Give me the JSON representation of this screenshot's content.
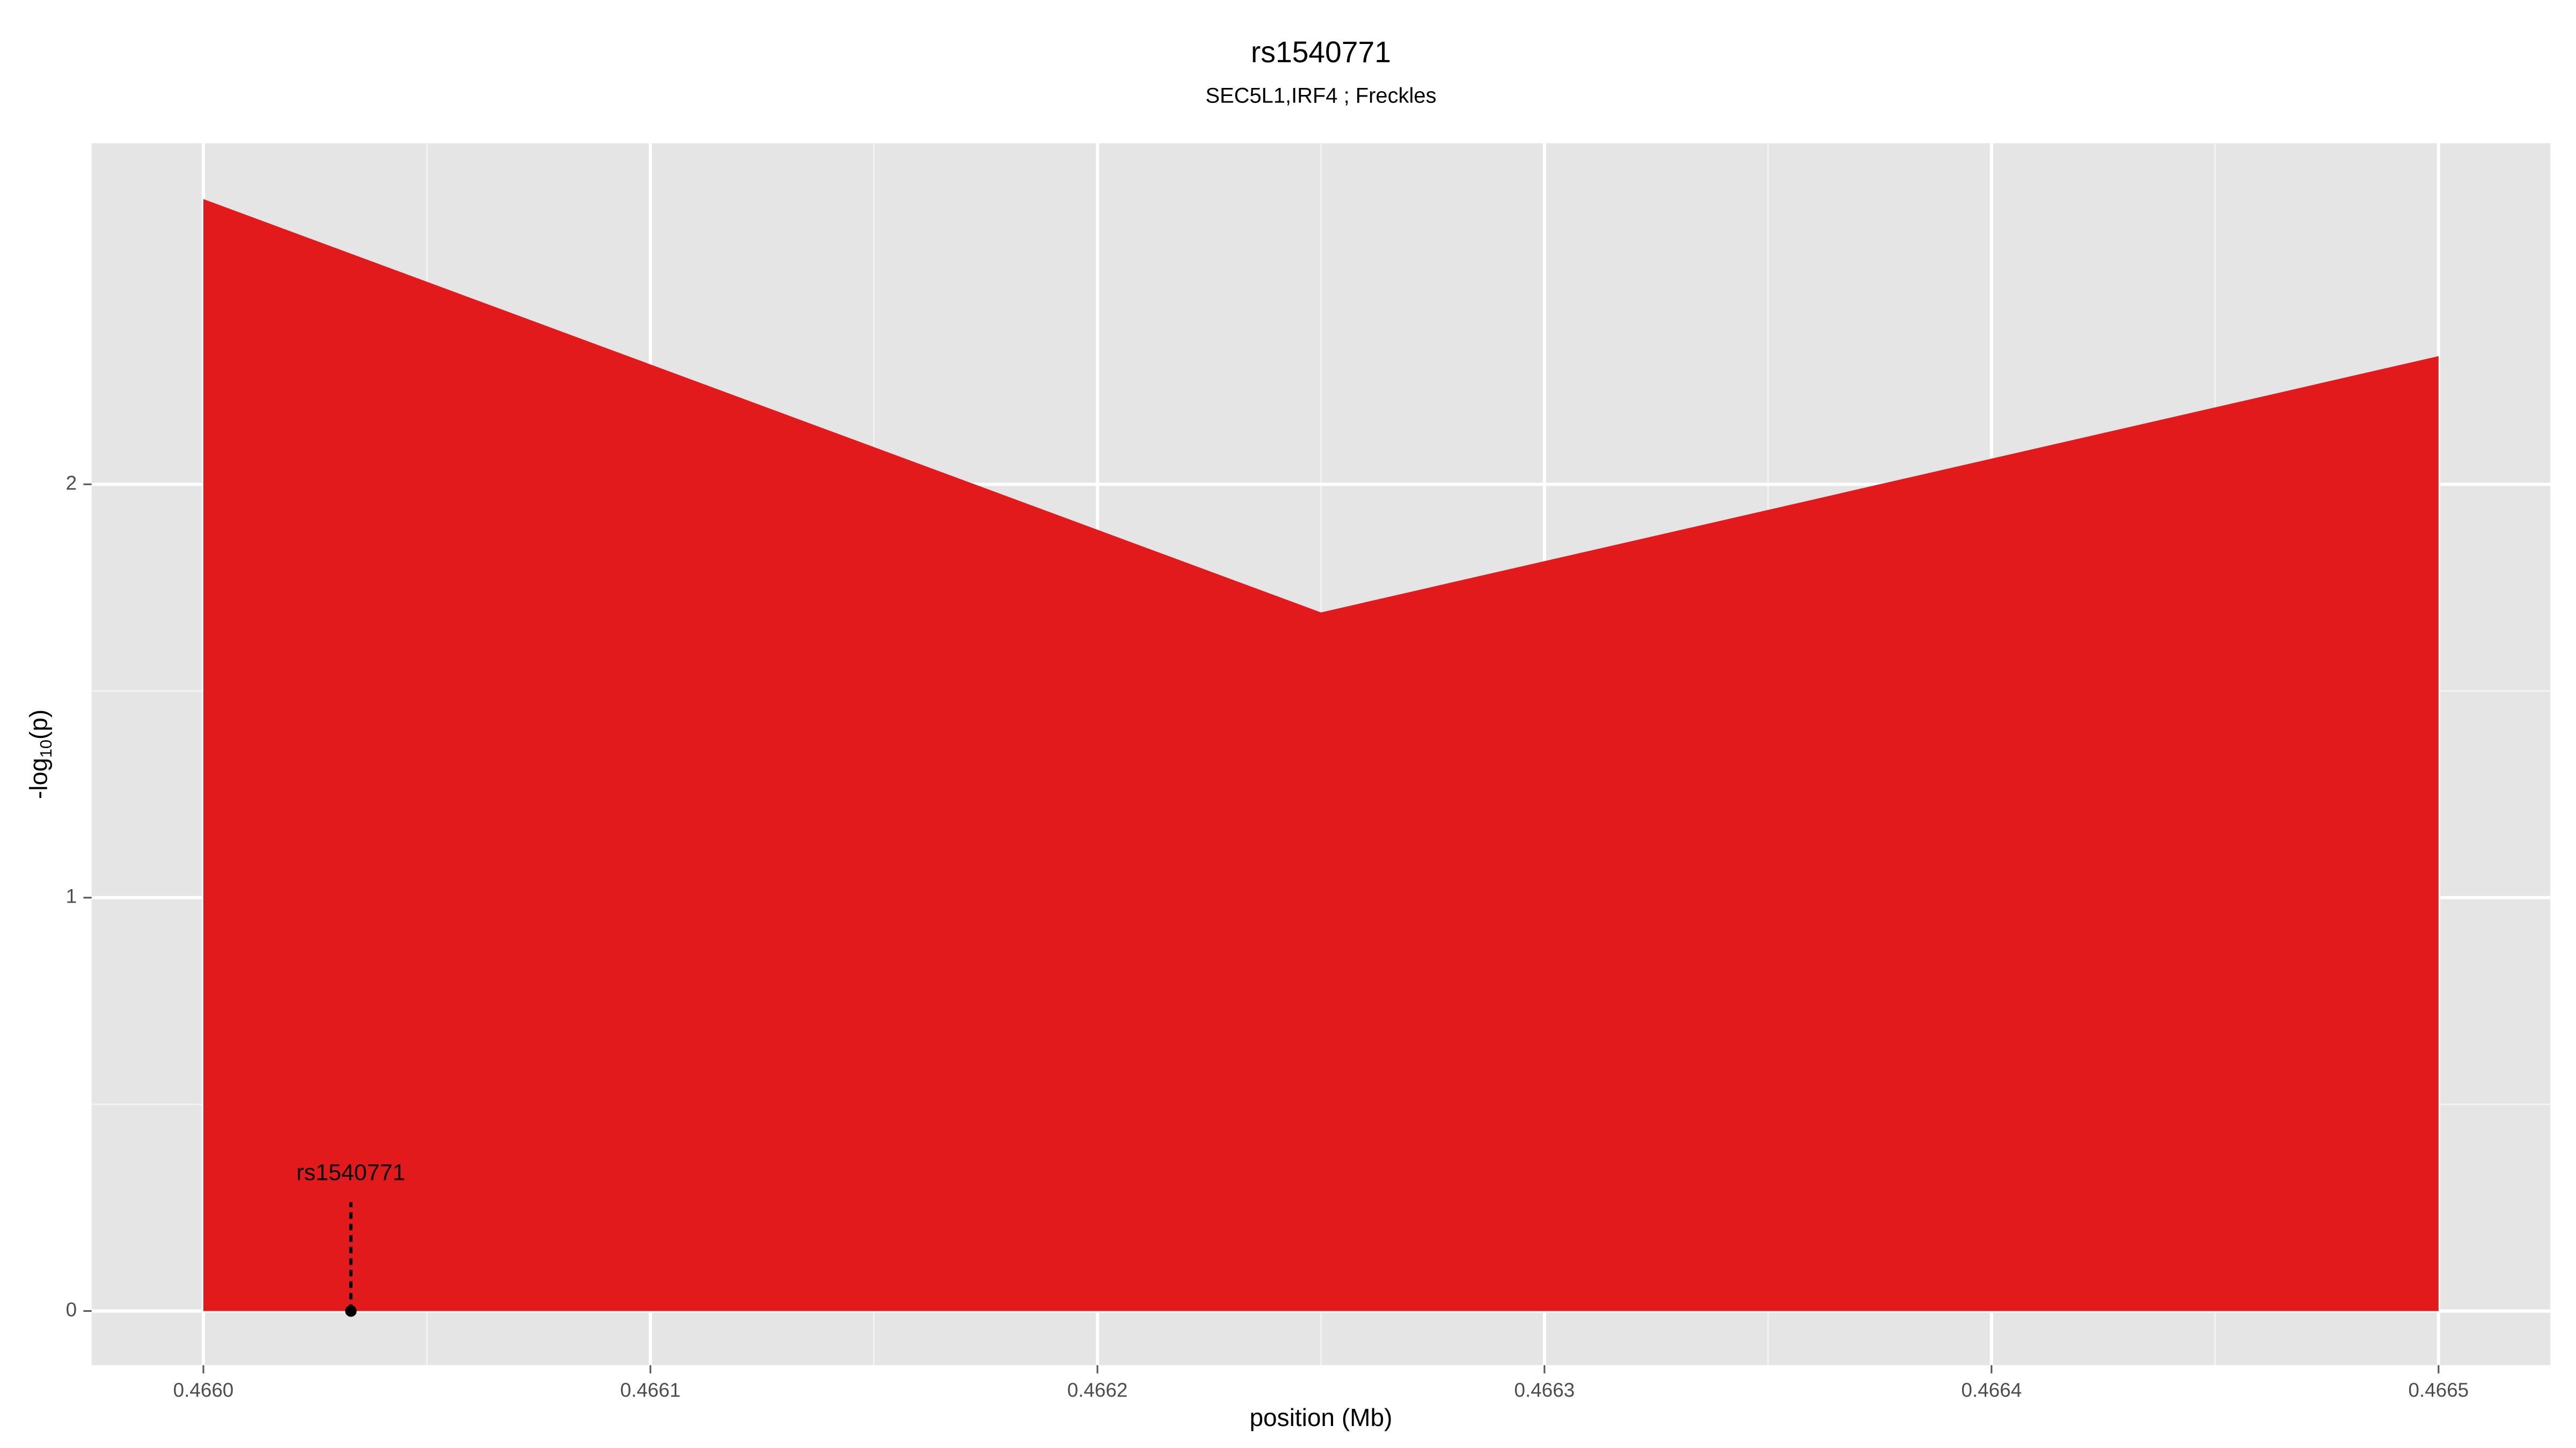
{
  "chart_data": {
    "type": "area",
    "title": "rs1540771",
    "subtitle": "SEC5L1,IRF4 ; Freckles",
    "xlabel": "position (Mb)",
    "ylabel": [
      "-log",
      "10",
      "(p)"
    ],
    "x": [
      0.466,
      0.46625,
      0.4665
    ],
    "series": [
      {
        "color": "#e31a1c",
        "values": [
          2.69,
          1.69,
          2.31
        ]
      }
    ],
    "xlim": [
      0.465975,
      0.466525
    ],
    "ylim": [
      -0.131,
      2.825
    ],
    "xticks": [
      {
        "value": 0.466,
        "label": "0.4660"
      },
      0.4661,
      0.4662,
      0.4663,
      0.4664,
      {
        "value": 0.4665,
        "label": "0.4665"
      }
    ],
    "yticks": [
      0,
      1,
      2
    ],
    "grid": true,
    "minor_grid": true,
    "annotations": [
      {
        "label": "rs1540771",
        "x": 0.466033,
        "y": 0
      }
    ]
  }
}
